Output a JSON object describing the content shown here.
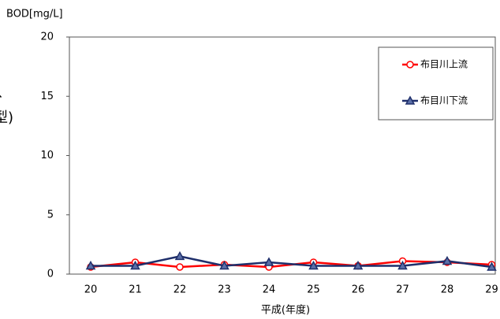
{
  "chart_data": {
    "type": "line",
    "y_label": "BOD[mg/L]",
    "x_label": "平成(年度)",
    "annotations": [
      "、",
      "型)"
    ],
    "categories": [
      "20",
      "21",
      "22",
      "23",
      "24",
      "25",
      "26",
      "27",
      "28",
      "29"
    ],
    "series": [
      {
        "name": "布目川上流",
        "color": "#ff0000",
        "marker": "circle",
        "values": [
          0.6,
          1.0,
          0.6,
          0.8,
          0.6,
          1.0,
          0.7,
          1.1,
          1.0,
          0.8
        ]
      },
      {
        "name": "布目川下流",
        "color": "#1f2f6b",
        "marker": "triangle",
        "values": [
          0.7,
          0.7,
          1.5,
          0.7,
          1.0,
          0.7,
          0.7,
          0.7,
          1.1,
          0.6
        ]
      }
    ],
    "ylim": [
      0,
      20
    ],
    "yticks": [
      0,
      5,
      10,
      15,
      20
    ],
    "grid": false,
    "legend": "upper right"
  }
}
